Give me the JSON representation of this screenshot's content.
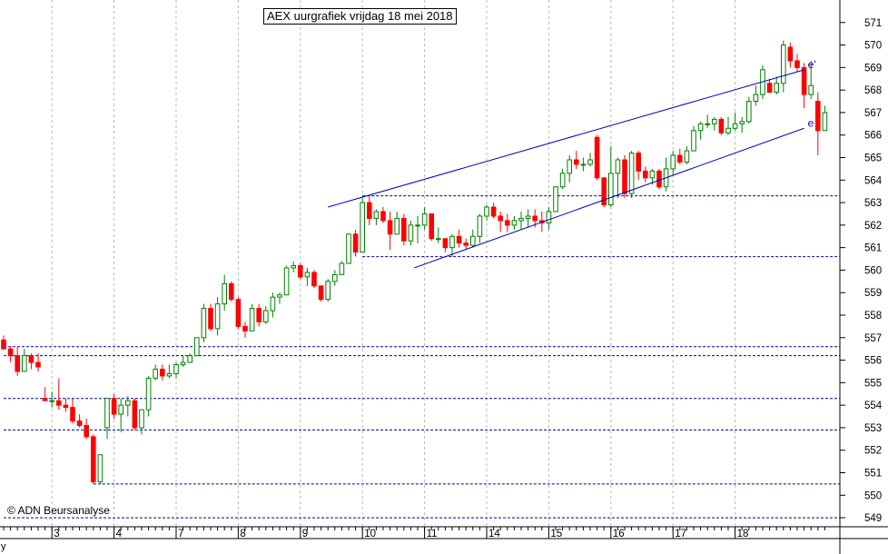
{
  "title": "AEX uurgrafiek vrijdag 18 mei 2018",
  "copyright": "© ADN Beursanalyse",
  "corner_label": "y",
  "colors": {
    "up": "#008000",
    "down": "#ff0000",
    "line": "#0000c0",
    "grid": "#b8b8b8"
  },
  "chart_data": {
    "type": "candlestick",
    "ylim": [
      548.6,
      572.0
    ],
    "y_ticks": [
      549,
      550,
      551,
      552,
      553,
      554,
      555,
      556,
      557,
      558,
      559,
      560,
      561,
      562,
      563,
      564,
      565,
      566,
      567,
      568,
      569,
      570,
      571
    ],
    "x_ticks": [
      {
        "label": "3",
        "i": 7.5
      },
      {
        "label": "4",
        "i": 16.5
      },
      {
        "label": "7",
        "i": 25.5
      },
      {
        "label": "8",
        "i": 34.5
      },
      {
        "label": "9",
        "i": 43.5
      },
      {
        "label": "10",
        "i": 52.5
      },
      {
        "label": "11",
        "i": 61.5
      },
      {
        "label": "14",
        "i": 70.5
      },
      {
        "label": "15",
        "i": 79.5
      },
      {
        "label": "16",
        "i": 88.5
      },
      {
        "label": "17",
        "i": 97.5
      },
      {
        "label": "18",
        "i": 106.5
      }
    ],
    "candles": [
      [
        556.9,
        557.1,
        556.5,
        556.5
      ],
      [
        556.5,
        556.6,
        555.9,
        556.2
      ],
      [
        556.2,
        556.6,
        555.3,
        555.5
      ],
      [
        555.5,
        556.5,
        555.5,
        556.2
      ],
      [
        556.2,
        556.3,
        555.6,
        555.9
      ],
      [
        555.9,
        556.3,
        555.5,
        555.7
      ],
      [
        554.3,
        554.8,
        554.2,
        554.2
      ],
      [
        554.2,
        554.6,
        553.9,
        554.2
      ],
      [
        554.2,
        555.2,
        553.8,
        554.0
      ],
      [
        554.0,
        554.3,
        553.7,
        553.9
      ],
      [
        553.9,
        554.3,
        553.2,
        553.3
      ],
      [
        553.3,
        553.6,
        553.0,
        553.1
      ],
      [
        553.1,
        553.4,
        552.5,
        552.6
      ],
      [
        552.6,
        552.7,
        550.5,
        550.6
      ],
      [
        550.6,
        551.8,
        550.5,
        551.8
      ],
      [
        553.0,
        554.3,
        552.5,
        554.3
      ],
      [
        554.3,
        554.5,
        553.4,
        553.6
      ],
      [
        553.6,
        554.3,
        552.8,
        554.0
      ],
      [
        554.0,
        554.4,
        553.5,
        554.2
      ],
      [
        554.2,
        554.3,
        552.9,
        553.0
      ],
      [
        553.0,
        553.8,
        552.7,
        553.8
      ],
      [
        553.8,
        555.3,
        553.5,
        555.2
      ],
      [
        555.2,
        555.8,
        555.1,
        555.6
      ],
      [
        555.6,
        555.8,
        555.1,
        555.3
      ],
      [
        555.3,
        555.8,
        555.2,
        555.4
      ],
      [
        555.4,
        555.9,
        555.2,
        555.8
      ],
      [
        555.8,
        556.2,
        555.7,
        555.9
      ],
      [
        555.9,
        556.3,
        555.9,
        556.2
      ],
      [
        556.2,
        557.0,
        556.2,
        557.0
      ],
      [
        557.0,
        558.5,
        556.8,
        558.3
      ],
      [
        558.3,
        558.5,
        557.3,
        557.4
      ],
      [
        557.4,
        558.8,
        557.1,
        558.5
      ],
      [
        558.5,
        559.8,
        558.2,
        559.4
      ],
      [
        559.4,
        559.5,
        558.6,
        558.7
      ],
      [
        558.7,
        558.8,
        557.4,
        557.5
      ],
      [
        557.5,
        557.7,
        557.0,
        557.3
      ],
      [
        557.3,
        558.5,
        557.3,
        558.3
      ],
      [
        558.3,
        558.5,
        557.5,
        557.7
      ],
      [
        557.7,
        558.4,
        557.6,
        558.2
      ],
      [
        558.2,
        559.0,
        557.9,
        558.8
      ],
      [
        558.8,
        559.0,
        558.5,
        558.9
      ],
      [
        558.9,
        560.2,
        558.9,
        560.1
      ],
      [
        560.1,
        560.4,
        559.9,
        560.2
      ],
      [
        560.2,
        560.3,
        559.6,
        559.7
      ],
      [
        559.7,
        560.1,
        559.3,
        559.9
      ],
      [
        559.9,
        560.0,
        559.2,
        559.3
      ],
      [
        559.3,
        559.3,
        558.6,
        558.7
      ],
      [
        558.7,
        559.6,
        558.6,
        559.5
      ],
      [
        559.5,
        560.0,
        559.3,
        559.8
      ],
      [
        559.8,
        560.4,
        559.8,
        560.3
      ],
      [
        560.3,
        561.6,
        560.3,
        561.6
      ],
      [
        561.6,
        561.8,
        560.6,
        560.8
      ],
      [
        560.8,
        563.2,
        560.8,
        563.0
      ],
      [
        563.0,
        563.3,
        562.0,
        562.3
      ],
      [
        562.3,
        562.7,
        562.0,
        562.6
      ],
      [
        562.6,
        562.8,
        562.1,
        562.2
      ],
      [
        562.2,
        562.6,
        560.9,
        561.6
      ],
      [
        561.6,
        562.6,
        561.6,
        562.3
      ],
      [
        562.3,
        562.5,
        561.1,
        561.3
      ],
      [
        561.3,
        562.2,
        561.1,
        562.0
      ],
      [
        562.0,
        562.4,
        561.2,
        562.0
      ],
      [
        562.0,
        562.8,
        561.8,
        562.5
      ],
      [
        562.5,
        562.5,
        561.3,
        561.4
      ],
      [
        561.4,
        561.9,
        561.2,
        561.4
      ],
      [
        561.4,
        561.4,
        560.8,
        561.0
      ],
      [
        561.0,
        561.6,
        560.6,
        561.5
      ],
      [
        561.5,
        561.8,
        561.0,
        561.2
      ],
      [
        561.2,
        561.4,
        560.9,
        561.1
      ],
      [
        561.1,
        561.8,
        561.0,
        561.5
      ],
      [
        561.5,
        562.5,
        561.2,
        562.4
      ],
      [
        562.4,
        562.9,
        562.2,
        562.8
      ],
      [
        562.8,
        563.0,
        562.3,
        562.4
      ],
      [
        562.4,
        562.6,
        561.7,
        562.2
      ],
      [
        562.2,
        562.5,
        561.7,
        562.0
      ],
      [
        562.0,
        562.4,
        561.8,
        562.2
      ],
      [
        562.2,
        562.6,
        561.8,
        562.3
      ],
      [
        562.3,
        562.7,
        561.9,
        562.4
      ],
      [
        562.4,
        562.7,
        561.9,
        562.2
      ],
      [
        562.2,
        562.6,
        561.7,
        562.1
      ],
      [
        562.1,
        562.8,
        561.8,
        562.6
      ],
      [
        562.6,
        563.7,
        562.6,
        563.7
      ],
      [
        563.7,
        564.5,
        563.6,
        564.3
      ],
      [
        564.3,
        565.1,
        563.9,
        564.9
      ],
      [
        564.9,
        565.3,
        564.5,
        564.7
      ],
      [
        564.7,
        565.0,
        564.4,
        564.7
      ],
      [
        564.7,
        565.2,
        564.6,
        564.9
      ],
      [
        565.9,
        566.0,
        564.0,
        564.1
      ],
      [
        564.1,
        564.1,
        562.8,
        562.9
      ],
      [
        562.9,
        565.5,
        562.8,
        564.3
      ],
      [
        564.3,
        565.0,
        563.2,
        564.9
      ],
      [
        564.9,
        565.1,
        563.2,
        563.4
      ],
      [
        563.4,
        565.3,
        563.2,
        565.2
      ],
      [
        565.2,
        565.3,
        564.0,
        564.4
      ],
      [
        564.4,
        564.6,
        563.9,
        564.1
      ],
      [
        564.1,
        564.5,
        563.8,
        564.4
      ],
      [
        564.4,
        564.5,
        563.6,
        563.7
      ],
      [
        563.7,
        565.0,
        563.5,
        564.5
      ],
      [
        564.5,
        565.3,
        564.2,
        565.1
      ],
      [
        565.1,
        565.4,
        564.7,
        564.8
      ],
      [
        564.8,
        565.5,
        564.7,
        565.3
      ],
      [
        565.3,
        566.4,
        565.3,
        566.2
      ],
      [
        566.2,
        566.6,
        565.8,
        566.5
      ],
      [
        566.5,
        566.9,
        566.3,
        566.5
      ],
      [
        566.5,
        566.8,
        566.2,
        566.7
      ],
      [
        566.7,
        566.8,
        566.0,
        566.1
      ],
      [
        566.1,
        566.8,
        566.0,
        566.3
      ],
      [
        566.3,
        567.0,
        566.2,
        566.5
      ],
      [
        566.5,
        566.8,
        566.1,
        566.6
      ],
      [
        566.6,
        567.7,
        566.5,
        567.5
      ],
      [
        567.5,
        568.2,
        567.3,
        567.8
      ],
      [
        567.8,
        569.1,
        567.6,
        568.9
      ],
      [
        568.3,
        568.5,
        567.9,
        567.9
      ],
      [
        567.9,
        568.6,
        567.8,
        568.3
      ],
      [
        568.3,
        570.2,
        567.9,
        570.0
      ],
      [
        569.9,
        570.1,
        569.0,
        569.3
      ],
      [
        569.3,
        569.6,
        568.8,
        569.0
      ],
      [
        569.0,
        569.2,
        567.2,
        567.8
      ],
      [
        567.8,
        569.3,
        567.6,
        568.2
      ],
      [
        567.5,
        567.9,
        565.1,
        566.2
      ],
      [
        566.2,
        567.3,
        566.2,
        567.0
      ]
    ],
    "h_levels": [
      {
        "value": 563.3,
        "from_i": 52
      },
      {
        "value": 560.6,
        "from_i": 52
      },
      {
        "value": 556.6,
        "from_i": 0
      },
      {
        "value": 556.2,
        "from_i": 0
      },
      {
        "value": 554.3,
        "from_i": 0
      },
      {
        "value": 552.9,
        "from_i": 0
      },
      {
        "value": 550.5,
        "from_i": 13
      },
      {
        "value": 549.0,
        "from_i": 0
      }
    ],
    "trend_lines": [
      {
        "label": "e'",
        "start": {
          "i": 47,
          "y": 562.8
        },
        "end": {
          "i": 116,
          "y": 568.9
        }
      },
      {
        "label": "e",
        "start": {
          "i": 59.5,
          "y": 560.1
        },
        "end": {
          "i": 116,
          "y": 566.3
        }
      }
    ]
  }
}
